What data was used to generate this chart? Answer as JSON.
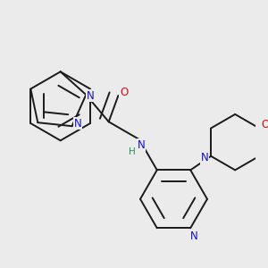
{
  "bg_color": "#ebebeb",
  "bond_color": "#1a1a1a",
  "bond_width": 1.4,
  "atom_colors": {
    "N": "#1010cc",
    "O": "#cc1010",
    "H": "#2a9060",
    "C": "#1a1a1a"
  },
  "font_size": 8.5,
  "bold_N": true
}
